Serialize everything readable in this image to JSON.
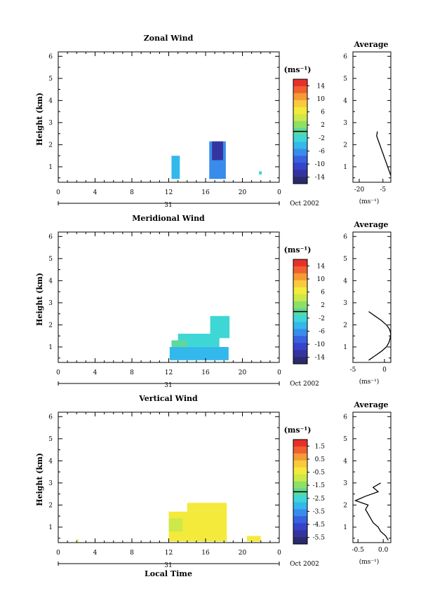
{
  "panels": [
    {
      "id": "zonal",
      "title": "Zonal Wind",
      "ylabel": "Height (km)",
      "x_ticks": [
        "0",
        "4",
        "8",
        "12",
        "16",
        "20",
        "0"
      ],
      "y_ticks": [
        "1",
        "2",
        "3",
        "4",
        "5",
        "6"
      ],
      "day": "31",
      "month": "Oct 2002",
      "colorbar": {
        "unit": "(ms⁻¹)",
        "tick_labels": [
          "14",
          "10",
          "6",
          "2",
          "-2",
          "-6",
          "-10",
          "-14"
        ],
        "colors": [
          "#e8302a",
          "#f06030",
          "#f59a35",
          "#fbc93c",
          "#f4ea3b",
          "#cde848",
          "#8ee064",
          "#5ed89b",
          "#3fd6d6",
          "#33b8ec",
          "#3a8cec",
          "#3862e0",
          "#3544c8",
          "#3434a0",
          "#2a2a6e"
        ]
      },
      "avg": {
        "title": "Average",
        "x_ticks": [
          "-20",
          "-5"
        ],
        "xlabel": "(ms⁻¹)"
      }
    },
    {
      "id": "meridional",
      "title": "Meridional Wind",
      "ylabel": "Height (km)",
      "x_ticks": [
        "0",
        "4",
        "8",
        "12",
        "16",
        "20",
        "0"
      ],
      "y_ticks": [
        "1",
        "2",
        "3",
        "4",
        "5",
        "6"
      ],
      "day": "31",
      "month": "Oct 2002",
      "colorbar": {
        "unit": "(ms⁻¹)",
        "tick_labels": [
          "14",
          "10",
          "6",
          "2",
          "-2",
          "-6",
          "-10",
          "-14"
        ],
        "colors": [
          "#e8302a",
          "#f06030",
          "#f59a35",
          "#fbc93c",
          "#f4ea3b",
          "#cde848",
          "#8ee064",
          "#5ed89b",
          "#3fd6d6",
          "#33b8ec",
          "#3a8cec",
          "#3862e0",
          "#3544c8",
          "#3434a0",
          "#2a2a6e"
        ]
      },
      "avg": {
        "title": "Average",
        "x_ticks": [
          "-5",
          "0"
        ],
        "xlabel": "(ms⁻¹)"
      }
    },
    {
      "id": "vertical",
      "title": "Vertical Wind",
      "ylabel": "Height (km)",
      "xlabel": "Local Time",
      "x_ticks": [
        "0",
        "4",
        "8",
        "12",
        "16",
        "20",
        "0"
      ],
      "y_ticks": [
        "1",
        "2",
        "3",
        "4",
        "5",
        "6"
      ],
      "day": "31",
      "month": "Oct 2002",
      "colorbar": {
        "unit": "(ms⁻¹)",
        "tick_labels": [
          "1.5",
          "0.5",
          "-0.5",
          "-1.5",
          "-2.5",
          "-3.5",
          "-4.5",
          "-5.5"
        ],
        "colors": [
          "#e8302a",
          "#f06030",
          "#f59a35",
          "#fbc93c",
          "#f4ea3b",
          "#cde848",
          "#8ee064",
          "#5ed89b",
          "#3fd6d6",
          "#33b8ec",
          "#3a8cec",
          "#3862e0",
          "#3544c8",
          "#3434a0",
          "#2a2a6e"
        ]
      },
      "avg": {
        "title": "Average",
        "x_ticks": [
          "-0.5",
          "0.0"
        ],
        "xlabel": "(ms⁻¹)"
      }
    }
  ],
  "chart_data": [
    {
      "type": "heatmap",
      "title": "Zonal Wind",
      "xlabel": "",
      "ylabel": "Height (km)",
      "xlim": [
        0,
        24
      ],
      "ylim": [
        0.3,
        6.2
      ],
      "cells": [
        {
          "t": [
            12.3,
            13.2
          ],
          "h": [
            0.45,
            1.5
          ],
          "v": -3
        },
        {
          "t": [
            16.4,
            18.2
          ],
          "h": [
            0.45,
            2.15
          ],
          "v": -6
        },
        {
          "t": [
            16.7,
            17.9
          ],
          "h": [
            1.3,
            2.15
          ],
          "v": -11
        },
        {
          "t": [
            21.8,
            22.1
          ],
          "h": [
            0.65,
            0.8
          ],
          "v": -1
        }
      ],
      "average_profile": {
        "xlim": [
          -24,
          0
        ],
        "points": [
          [
            -8.5,
            2.6
          ],
          [
            -9,
            2.4
          ],
          [
            -8,
            2.2
          ],
          [
            -7,
            2
          ],
          [
            -6,
            1.8
          ],
          [
            -5,
            1.6
          ],
          [
            -4,
            1.4
          ],
          [
            -3,
            1.2
          ],
          [
            -2,
            1
          ],
          [
            -1,
            0.8
          ],
          [
            0,
            0.6
          ]
        ]
      }
    },
    {
      "type": "heatmap",
      "title": "Meridional Wind",
      "xlabel": "",
      "ylabel": "Height (km)",
      "xlim": [
        0,
        24
      ],
      "ylim": [
        0.3,
        6.2
      ],
      "cells": [
        {
          "t": [
            12.1,
            18.5
          ],
          "h": [
            0.4,
            1.0
          ],
          "v": -3
        },
        {
          "t": [
            13.0,
            17.5
          ],
          "h": [
            1.0,
            1.6
          ],
          "v": -2
        },
        {
          "t": [
            16.5,
            18.6
          ],
          "h": [
            1.4,
            2.4
          ],
          "v": -1
        },
        {
          "t": [
            12.3,
            14.0
          ],
          "h": [
            1.0,
            1.3
          ],
          "v": 0
        }
      ],
      "average_profile": {
        "xlim": [
          -5,
          1
        ],
        "points": [
          [
            -2.5,
            2.6
          ],
          [
            -1.5,
            2.4
          ],
          [
            -0.5,
            2.2
          ],
          [
            0.3,
            2
          ],
          [
            0.8,
            1.8
          ],
          [
            1,
            1.6
          ],
          [
            0.9,
            1.4
          ],
          [
            0.7,
            1.2
          ],
          [
            0.3,
            1
          ],
          [
            -0.5,
            0.8
          ],
          [
            -1.5,
            0.6
          ],
          [
            -2.5,
            0.4
          ]
        ]
      }
    },
    {
      "type": "heatmap",
      "title": "Vertical Wind",
      "xlabel": "Local Time",
      "ylabel": "Height (km)",
      "xlim": [
        0,
        24
      ],
      "ylim": [
        0.3,
        6.2
      ],
      "cells": [
        {
          "t": [
            12.0,
            18.3
          ],
          "h": [
            0.35,
            1.7
          ],
          "v": -0.8
        },
        {
          "t": [
            14.0,
            18.3
          ],
          "h": [
            1.7,
            2.1
          ],
          "v": -0.6
        },
        {
          "t": [
            12.0,
            13.5
          ],
          "h": [
            0.8,
            1.4
          ],
          "v": -1.2
        },
        {
          "t": [
            20.5,
            22.0
          ],
          "h": [
            0.35,
            0.6
          ],
          "v": -0.4
        },
        {
          "t": [
            2.0,
            2.2
          ],
          "h": [
            0.35,
            0.45
          ],
          "v": -0.5
        }
      ],
      "average_profile": {
        "xlim": [
          -0.6,
          0.15
        ],
        "points": [
          [
            -0.05,
            3
          ],
          [
            -0.2,
            2.8
          ],
          [
            -0.1,
            2.6
          ],
          [
            -0.35,
            2.4
          ],
          [
            -0.55,
            2.2
          ],
          [
            -0.3,
            2
          ],
          [
            -0.35,
            1.8
          ],
          [
            -0.3,
            1.6
          ],
          [
            -0.25,
            1.4
          ],
          [
            -0.2,
            1.2
          ],
          [
            -0.1,
            1
          ],
          [
            -0.05,
            0.8
          ],
          [
            0.05,
            0.6
          ],
          [
            0.1,
            0.4
          ]
        ]
      }
    }
  ]
}
